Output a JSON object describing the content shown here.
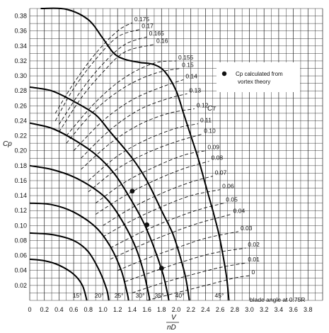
{
  "chart_data": {
    "type": "line",
    "xlabel_top": "V",
    "xlabel_bottom": "nD",
    "ylabel": "Cp",
    "xlim": [
      0,
      4.0
    ],
    "ylim": [
      0,
      0.39
    ],
    "x_ticks": [
      "0",
      "0.2",
      "0.4",
      "0.6",
      "0.8",
      "1.0",
      "1.2",
      "1.4",
      "1.6",
      "1.8",
      "2.0",
      "2.2",
      "2.4",
      "2.6",
      "2.8",
      "3.0",
      "3.2",
      "3.4",
      "3.6",
      "3.8"
    ],
    "y_ticks": [
      "0.02",
      "0.04",
      "0.06",
      "0.08",
      "0.10",
      "0.12",
      "0.14",
      "0.16",
      "0.18",
      "0.20",
      "0.22",
      "0.24",
      "0.26",
      "0.28",
      "0.30",
      "0.32",
      "0.34",
      "0.36",
      "0.38"
    ],
    "grid": true,
    "legend": {
      "placement": "top-right",
      "marker": "●",
      "text_line1": "Cp calculated from",
      "text_line2": "vortex theory"
    },
    "ct_family_label": "Cᴛ",
    "blade_angle_note": "blade angle at 0.75R",
    "blade_angle_series": [
      {
        "label": "15°",
        "points": [
          [
            0,
            0.055
          ],
          [
            0.2,
            0.053
          ],
          [
            0.4,
            0.047
          ],
          [
            0.6,
            0.035
          ],
          [
            0.72,
            0.02
          ],
          [
            0.78,
            0
          ]
        ]
      },
      {
        "label": "20°",
        "points": [
          [
            0,
            0.09
          ],
          [
            0.3,
            0.088
          ],
          [
            0.6,
            0.08
          ],
          [
            0.8,
            0.065
          ],
          [
            0.95,
            0.04
          ],
          [
            1.05,
            0.015
          ],
          [
            1.08,
            0
          ]
        ]
      },
      {
        "label": "25°",
        "points": [
          [
            0,
            0.13
          ],
          [
            0.3,
            0.128
          ],
          [
            0.6,
            0.118
          ],
          [
            0.9,
            0.098
          ],
          [
            1.1,
            0.072
          ],
          [
            1.25,
            0.04
          ],
          [
            1.33,
            0.01
          ],
          [
            1.35,
            0
          ]
        ]
      },
      {
        "label": "30°",
        "points": [
          [
            0,
            0.18
          ],
          [
            0.3,
            0.175
          ],
          [
            0.6,
            0.165
          ],
          [
            0.9,
            0.148
          ],
          [
            1.1,
            0.13
          ],
          [
            1.3,
            0.1
          ],
          [
            1.45,
            0.07
          ],
          [
            1.55,
            0.04
          ],
          [
            1.62,
            0.01
          ],
          [
            1.64,
            0
          ]
        ]
      },
      {
        "label": "35°",
        "points": [
          [
            0,
            0.237
          ],
          [
            0.3,
            0.23
          ],
          [
            0.6,
            0.215
          ],
          [
            0.9,
            0.195
          ],
          [
            1.15,
            0.17
          ],
          [
            1.35,
            0.14
          ],
          [
            1.55,
            0.105
          ],
          [
            1.7,
            0.07
          ],
          [
            1.82,
            0.035
          ],
          [
            1.88,
            0.01
          ],
          [
            1.9,
            0
          ]
        ]
      },
      {
        "label": "40°",
        "points": [
          [
            0,
            0.285
          ],
          [
            0.3,
            0.28
          ],
          [
            0.6,
            0.266
          ],
          [
            0.9,
            0.248
          ],
          [
            1.1,
            0.225
          ],
          [
            1.4,
            0.19
          ],
          [
            1.6,
            0.16
          ],
          [
            1.8,
            0.12
          ],
          [
            1.95,
            0.09
          ],
          [
            2.05,
            0.06
          ],
          [
            2.13,
            0.03
          ],
          [
            2.18,
            0
          ]
        ]
      },
      {
        "label": "45°",
        "points": [
          [
            0.15,
            0.39
          ],
          [
            0.5,
            0.389
          ],
          [
            0.8,
            0.375
          ],
          [
            1.0,
            0.35
          ],
          [
            1.15,
            0.33
          ],
          [
            1.3,
            0.322
          ],
          [
            1.5,
            0.318
          ],
          [
            1.7,
            0.315
          ],
          [
            1.85,
            0.305
          ],
          [
            2.0,
            0.28
          ],
          [
            2.1,
            0.25
          ],
          [
            2.2,
            0.22
          ],
          [
            2.3,
            0.19
          ],
          [
            2.4,
            0.155
          ],
          [
            2.5,
            0.12
          ],
          [
            2.58,
            0.09
          ],
          [
            2.64,
            0.06
          ],
          [
            2.69,
            0.03
          ],
          [
            2.72,
            0
          ]
        ]
      }
    ],
    "vortex_points": [
      {
        "x": 1.4,
        "y": 0.146
      },
      {
        "x": 1.6,
        "y": 0.101
      },
      {
        "x": 1.8,
        "y": 0.043
      }
    ],
    "ct_contours": [
      {
        "label": "0.175",
        "points": [
          [
            0.35,
            0.25
          ],
          [
            0.6,
            0.29
          ],
          [
            0.9,
            0.33
          ],
          [
            1.2,
            0.36
          ],
          [
            1.4,
            0.371
          ]
        ]
      },
      {
        "label": "0.17",
        "points": [
          [
            0.35,
            0.24
          ],
          [
            0.6,
            0.283
          ],
          [
            0.9,
            0.322
          ],
          [
            1.2,
            0.352
          ],
          [
            1.5,
            0.362
          ]
        ]
      },
      {
        "label": "0.165",
        "points": [
          [
            0.4,
            0.235
          ],
          [
            0.7,
            0.28
          ],
          [
            1.0,
            0.316
          ],
          [
            1.3,
            0.342
          ],
          [
            1.6,
            0.352
          ]
        ]
      },
      {
        "label": "0.16",
        "points": [
          [
            0.4,
            0.225
          ],
          [
            0.7,
            0.27
          ],
          [
            1.0,
            0.305
          ],
          [
            1.3,
            0.332
          ],
          [
            1.7,
            0.342
          ]
        ]
      },
      {
        "label": "0.155",
        "points": [
          [
            0.5,
            0.22
          ],
          [
            0.9,
            0.265
          ],
          [
            1.3,
            0.298
          ],
          [
            1.7,
            0.317
          ],
          [
            2.0,
            0.32
          ]
        ]
      },
      {
        "label": "0.15",
        "points": [
          [
            0.5,
            0.21
          ],
          [
            0.9,
            0.255
          ],
          [
            1.3,
            0.285
          ],
          [
            1.7,
            0.303
          ],
          [
            2.05,
            0.31
          ]
        ]
      },
      {
        "label": "0.14",
        "points": [
          [
            0.6,
            0.2
          ],
          [
            1.0,
            0.24
          ],
          [
            1.4,
            0.268
          ],
          [
            1.8,
            0.285
          ],
          [
            2.1,
            0.295
          ]
        ]
      },
      {
        "label": "0.13",
        "points": [
          [
            0.7,
            0.19
          ],
          [
            1.1,
            0.228
          ],
          [
            1.5,
            0.255
          ],
          [
            1.9,
            0.27
          ],
          [
            2.15,
            0.276
          ]
        ]
      },
      {
        "label": "0.12",
        "points": [
          [
            0.7,
            0.175
          ],
          [
            1.1,
            0.21
          ],
          [
            1.5,
            0.235
          ],
          [
            1.9,
            0.25
          ],
          [
            2.25,
            0.256
          ]
        ]
      },
      {
        "label": "0.11",
        "points": [
          [
            0.8,
            0.16
          ],
          [
            1.2,
            0.193
          ],
          [
            1.6,
            0.215
          ],
          [
            2.0,
            0.23
          ],
          [
            2.3,
            0.236
          ]
        ]
      },
      {
        "label": "0.10",
        "points": [
          [
            0.8,
            0.145
          ],
          [
            1.2,
            0.176
          ],
          [
            1.6,
            0.197
          ],
          [
            2.0,
            0.212
          ],
          [
            2.35,
            0.222
          ]
        ]
      },
      {
        "label": "0.09",
        "points": [
          [
            0.9,
            0.13
          ],
          [
            1.3,
            0.158
          ],
          [
            1.7,
            0.178
          ],
          [
            2.1,
            0.194
          ],
          [
            2.4,
            0.2
          ]
        ]
      },
      {
        "label": "0.08",
        "points": [
          [
            0.9,
            0.115
          ],
          [
            1.3,
            0.14
          ],
          [
            1.7,
            0.16
          ],
          [
            2.1,
            0.176
          ],
          [
            2.45,
            0.186
          ]
        ]
      },
      {
        "label": "0.07",
        "points": [
          [
            1.0,
            0.1
          ],
          [
            1.4,
            0.124
          ],
          [
            1.8,
            0.143
          ],
          [
            2.2,
            0.158
          ],
          [
            2.5,
            0.166
          ]
        ]
      },
      {
        "label": "0.06",
        "points": [
          [
            1.0,
            0.085
          ],
          [
            1.4,
            0.107
          ],
          [
            1.8,
            0.125
          ],
          [
            2.2,
            0.14
          ],
          [
            2.6,
            0.148
          ]
        ]
      },
      {
        "label": "0.05",
        "points": [
          [
            1.1,
            0.07
          ],
          [
            1.5,
            0.09
          ],
          [
            1.9,
            0.107
          ],
          [
            2.3,
            0.121
          ],
          [
            2.65,
            0.13
          ]
        ]
      },
      {
        "label": "0.04",
        "points": [
          [
            1.1,
            0.055
          ],
          [
            1.5,
            0.073
          ],
          [
            1.9,
            0.089
          ],
          [
            2.3,
            0.103
          ],
          [
            2.75,
            0.115
          ]
        ]
      },
      {
        "label": "0.03",
        "points": [
          [
            1.2,
            0.04
          ],
          [
            1.6,
            0.056
          ],
          [
            2.0,
            0.07
          ],
          [
            2.4,
            0.083
          ],
          [
            2.85,
            0.092
          ]
        ]
      },
      {
        "label": "0.02",
        "points": [
          [
            1.3,
            0.025
          ],
          [
            1.7,
            0.039
          ],
          [
            2.1,
            0.052
          ],
          [
            2.5,
            0.063
          ],
          [
            2.95,
            0.07
          ]
        ]
      },
      {
        "label": "0.01",
        "points": [
          [
            1.4,
            0.01
          ],
          [
            1.8,
            0.023
          ],
          [
            2.2,
            0.034
          ],
          [
            2.6,
            0.044
          ],
          [
            2.95,
            0.05
          ]
        ]
      },
      {
        "label": "0",
        "points": [
          [
            1.6,
            0.0
          ],
          [
            2.0,
            0.01
          ],
          [
            2.4,
            0.02
          ],
          [
            2.8,
            0.03
          ],
          [
            3.0,
            0.033
          ]
        ]
      }
    ]
  }
}
